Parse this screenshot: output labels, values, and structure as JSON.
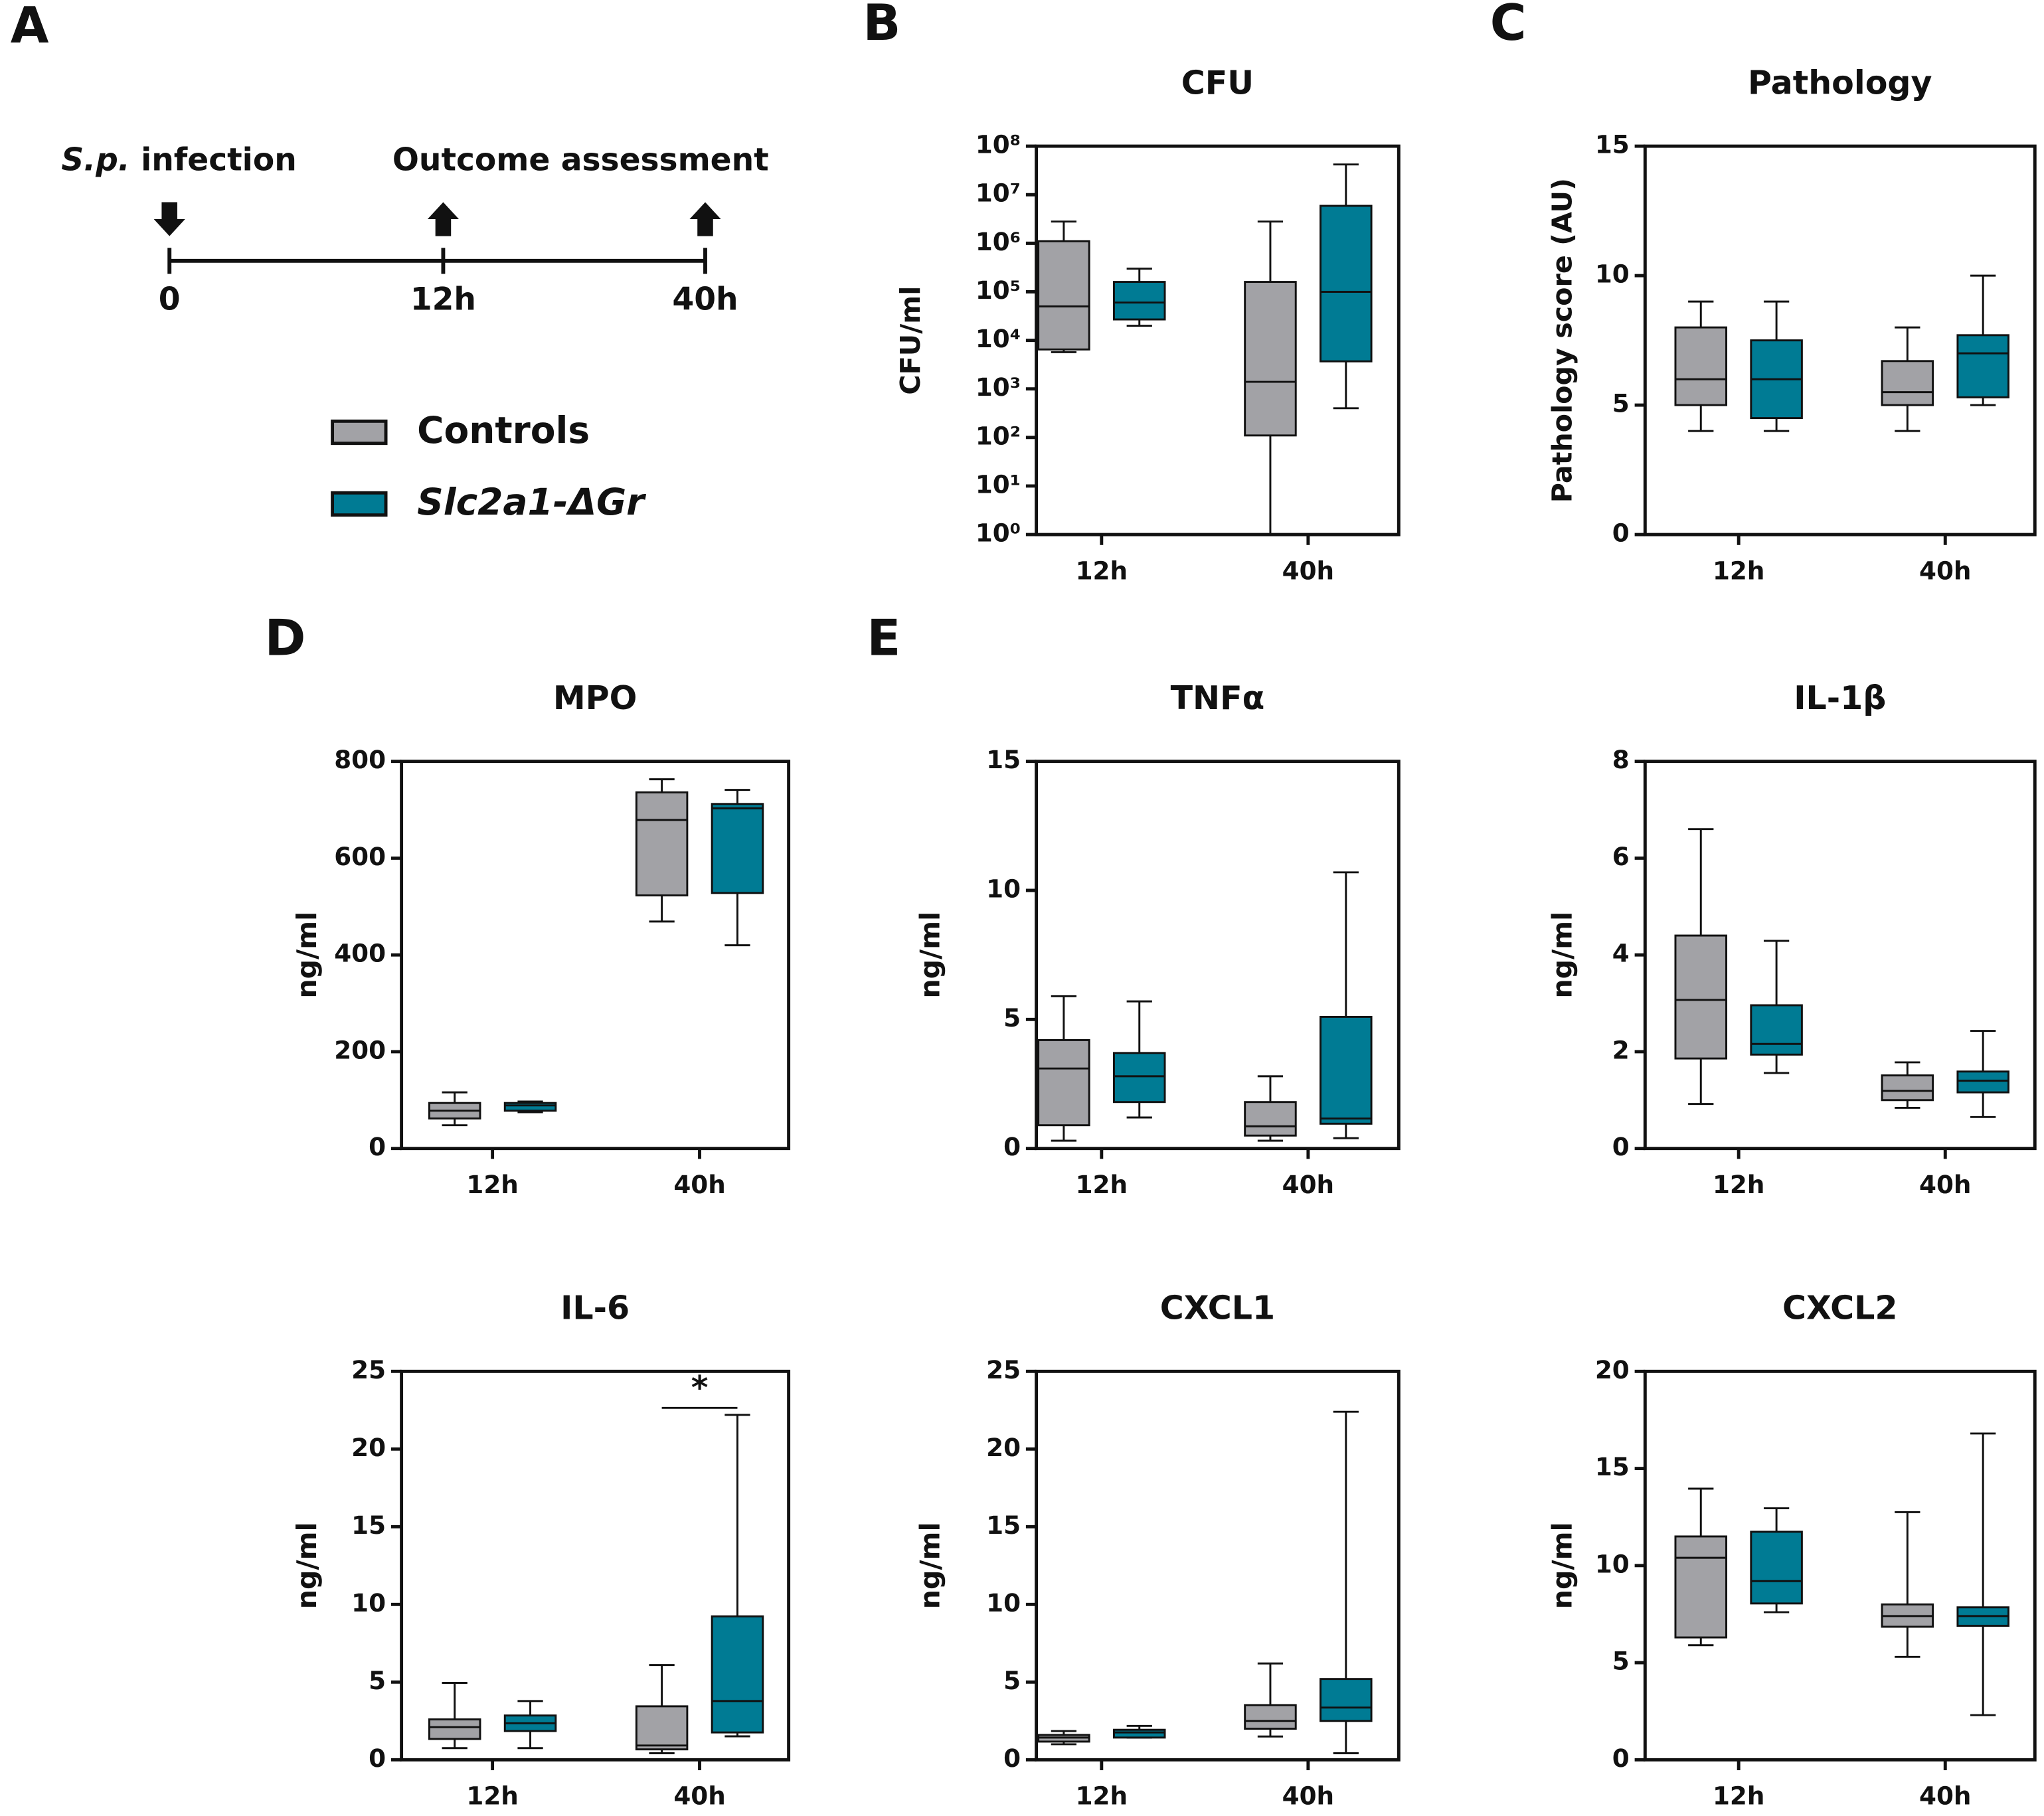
{
  "timeline": {
    "panel": "A",
    "start_label": [
      "S.p.",
      " infection"
    ],
    "outcome_label": "Outcome assessment",
    "ticks": [
      "0",
      "12h",
      "40h"
    ]
  },
  "chart_data": [
    {
      "type": "box",
      "panel": "B",
      "title": "CFU",
      "ylabel": "CFU/ml",
      "categories": [
        "12h",
        "40h"
      ],
      "log_y": true,
      "ylim": [
        1,
        100000000
      ],
      "yticks": [
        {
          "value": 1,
          "label": "10⁰"
        },
        {
          "value": 10,
          "label": "10¹"
        },
        {
          "value": 100,
          "label": "10²"
        },
        {
          "value": 1000,
          "label": "10³"
        },
        {
          "value": 10000,
          "label": "10⁴"
        },
        {
          "value": 100000,
          "label": "10⁵"
        },
        {
          "value": 1000000,
          "label": "10⁶"
        },
        {
          "value": 10000000,
          "label": "10⁷"
        },
        {
          "value": 100000000,
          "label": "10⁸"
        }
      ],
      "series": [
        {
          "name": "Controls",
          "color": "#a2a2a6",
          "values": [
            {
              "min": 5700,
              "q1": 6500,
              "median": 50000,
              "q3": 1100000,
              "max": 2800000
            },
            {
              "min": 1,
              "q1": 110,
              "median": 1400,
              "q3": 160000,
              "max": 2800000
            }
          ]
        },
        {
          "name": "Slc2a1-ΔGr",
          "color": "#007b94",
          "values": [
            {
              "min": 20000,
              "q1": 27000,
              "median": 60000,
              "q3": 160000,
              "max": 300000
            },
            {
              "min": 400,
              "q1": 3700,
              "median": 100000,
              "q3": 5900000,
              "max": 42000000
            }
          ]
        }
      ]
    },
    {
      "type": "box",
      "panel": "C",
      "title": "Pathology",
      "ylabel": "Pathology score (AU)",
      "categories": [
        "12h",
        "40h"
      ],
      "ylim": [
        0,
        15
      ],
      "yticks": [
        0,
        5,
        10,
        15
      ],
      "series": [
        {
          "color": "#a2a2a6",
          "values": [
            {
              "min": 4,
              "q1": 5,
              "median": 6,
              "q3": 8,
              "max": 9
            },
            {
              "min": 4,
              "q1": 5,
              "median": 5.5,
              "q3": 6.7,
              "max": 8
            }
          ]
        },
        {
          "color": "#007b94",
          "values": [
            {
              "min": 4,
              "q1": 4.5,
              "median": 6,
              "q3": 7.5,
              "max": 9
            },
            {
              "min": 5,
              "q1": 5.3,
              "median": 7,
              "q3": 7.7,
              "max": 10
            }
          ]
        }
      ]
    },
    {
      "type": "box",
      "panel": "D",
      "title": "MPO",
      "ylabel": "ng/ml",
      "categories": [
        "12h",
        "40h"
      ],
      "ylim": [
        0,
        800
      ],
      "yticks": [
        0,
        200,
        400,
        600,
        800
      ],
      "series": [
        {
          "color": "#a2a2a6",
          "values": [
            {
              "min": 48,
              "q1": 62,
              "median": 78,
              "q3": 94,
              "max": 116
            },
            {
              "min": 469,
              "q1": 523,
              "median": 679,
              "q3": 736,
              "max": 763
            }
          ]
        },
        {
          "color": "#007b94",
          "values": [
            {
              "min": 75,
              "q1": 78,
              "median": 89,
              "q3": 94,
              "max": 97
            },
            {
              "min": 420,
              "q1": 528,
              "median": 703,
              "q3": 712,
              "max": 741
            }
          ]
        }
      ]
    },
    {
      "type": "box",
      "panel": "E",
      "title": "TNFα",
      "ylabel": "ng/ml",
      "categories": [
        "12h",
        "40h"
      ],
      "ylim": [
        0,
        15
      ],
      "yticks": [
        0,
        5,
        10,
        15
      ],
      "series": [
        {
          "color": "#a2a2a6",
          "values": [
            {
              "min": 0.3,
              "q1": 0.9,
              "median": 3.1,
              "q3": 4.2,
              "max": 5.9
            },
            {
              "min": 0.3,
              "q1": 0.5,
              "median": 0.86,
              "q3": 1.8,
              "max": 2.8
            }
          ]
        },
        {
          "color": "#007b94",
          "values": [
            {
              "min": 1.2,
              "q1": 1.8,
              "median": 2.8,
              "q3": 3.7,
              "max": 5.7
            },
            {
              "min": 0.4,
              "q1": 0.96,
              "median": 1.16,
              "q3": 5.1,
              "max": 10.7
            }
          ]
        }
      ]
    },
    {
      "type": "box",
      "title": "IL-1β",
      "ylabel": "ng/ml",
      "categories": [
        "12h",
        "40h"
      ],
      "ylim": [
        0,
        8
      ],
      "yticks": [
        0,
        2,
        4,
        6,
        8
      ],
      "series": [
        {
          "color": "#a2a2a6",
          "values": [
            {
              "min": 0.92,
              "q1": 1.86,
              "median": 3.07,
              "q3": 4.4,
              "max": 6.6
            },
            {
              "min": 0.84,
              "q1": 1.0,
              "median": 1.19,
              "q3": 1.51,
              "max": 1.78
            }
          ]
        },
        {
          "color": "#007b94",
          "values": [
            {
              "min": 1.56,
              "q1": 1.94,
              "median": 2.16,
              "q3": 2.96,
              "max": 4.29
            },
            {
              "min": 0.65,
              "q1": 1.16,
              "median": 1.4,
              "q3": 1.59,
              "max": 2.43
            }
          ]
        }
      ]
    },
    {
      "type": "box",
      "title": "IL-6",
      "ylabel": "ng/ml",
      "categories": [
        "12h",
        "40h"
      ],
      "annotation": "*",
      "ylim": [
        0,
        25
      ],
      "yticks": [
        0,
        5,
        10,
        15,
        20,
        25
      ],
      "series": [
        {
          "color": "#a2a2a6",
          "values": [
            {
              "min": 0.75,
              "q1": 1.34,
              "median": 2.1,
              "q3": 2.6,
              "max": 4.95
            },
            {
              "min": 0.42,
              "q1": 0.67,
              "median": 0.92,
              "q3": 3.44,
              "max": 6.1
            }
          ]
        },
        {
          "color": "#007b94",
          "values": [
            {
              "min": 0.75,
              "q1": 1.85,
              "median": 2.35,
              "q3": 2.85,
              "max": 3.78
            },
            {
              "min": 1.51,
              "q1": 1.76,
              "median": 3.78,
              "q3": 9.23,
              "max": 22.2
            }
          ]
        }
      ]
    },
    {
      "type": "box",
      "title": "CXCL1",
      "ylabel": "ng/ml",
      "categories": [
        "12h",
        "40h"
      ],
      "ylim": [
        0,
        25
      ],
      "yticks": [
        0,
        5,
        10,
        15,
        20,
        25
      ],
      "series": [
        {
          "color": "#a2a2a6",
          "values": [
            {
              "min": 1.0,
              "q1": 1.17,
              "median": 1.43,
              "q3": 1.6,
              "max": 1.85
            },
            {
              "min": 1.5,
              "q1": 2.0,
              "median": 2.5,
              "q3": 3.52,
              "max": 6.2
            }
          ]
        },
        {
          "color": "#007b94",
          "values": [
            {
              "min": 1.43,
              "q1": 1.43,
              "median": 1.76,
              "q3": 1.93,
              "max": 2.18
            },
            {
              "min": 0.42,
              "q1": 2.5,
              "median": 3.36,
              "q3": 5.2,
              "max": 22.4
            }
          ]
        }
      ]
    },
    {
      "type": "box",
      "title": "CXCL2",
      "ylabel": "ng/ml",
      "categories": [
        "12h",
        "40h"
      ],
      "ylim": [
        0,
        20
      ],
      "yticks": [
        0,
        5,
        10,
        15,
        20
      ],
      "series": [
        {
          "color": "#a2a2a6",
          "values": [
            {
              "min": 5.9,
              "q1": 6.3,
              "median": 10.4,
              "q3": 11.5,
              "max": 13.96
            },
            {
              "min": 5.3,
              "q1": 6.85,
              "median": 7.4,
              "q3": 8.0,
              "max": 12.75
            }
          ]
        },
        {
          "color": "#007b94",
          "values": [
            {
              "min": 7.6,
              "q1": 8.05,
              "median": 9.2,
              "q3": 11.74,
              "max": 12.95
            },
            {
              "min": 2.3,
              "q1": 6.9,
              "median": 7.4,
              "q3": 7.85,
              "max": 16.8
            }
          ]
        }
      ]
    }
  ]
}
